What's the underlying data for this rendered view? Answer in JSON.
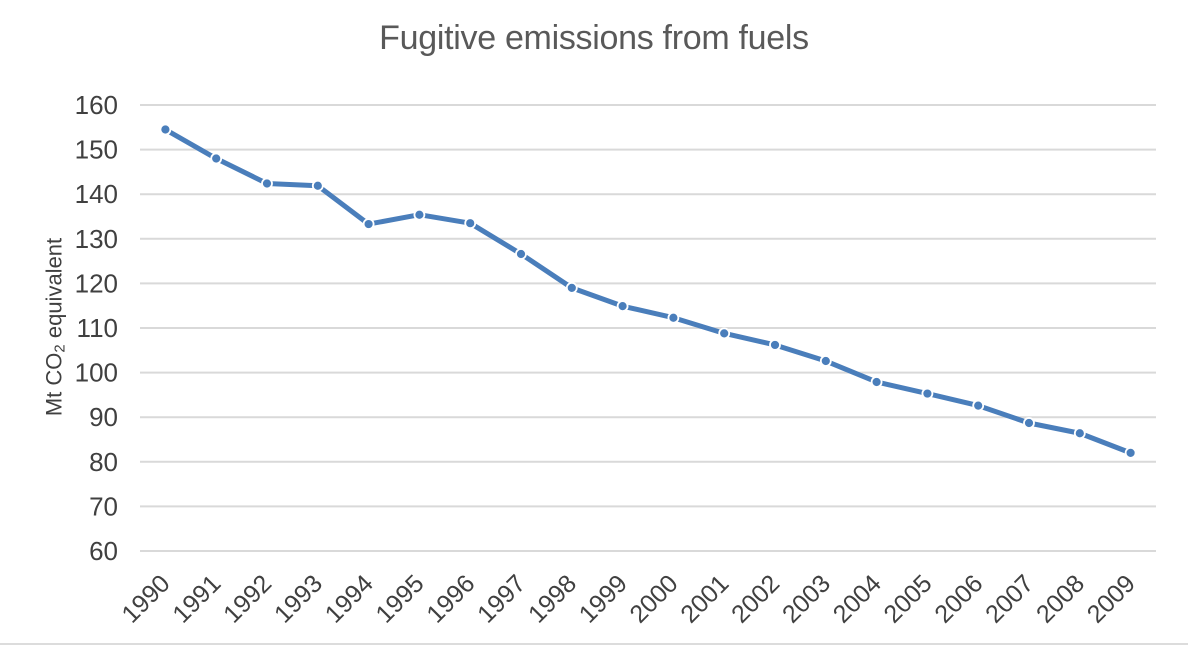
{
  "chart_data": {
    "type": "line",
    "title": "Fugitive emissions from fuels",
    "ylabel": "Mt CO₂ equivalent",
    "ylabel_parts": {
      "pre": "Mt CO",
      "sub": "2",
      "post": " equivalent"
    },
    "xlabel": "",
    "categories": [
      "1990",
      "1991",
      "1992",
      "1993",
      "1994",
      "1995",
      "1996",
      "1997",
      "1998",
      "1999",
      "2000",
      "2001",
      "2002",
      "2003",
      "2004",
      "2005",
      "2006",
      "2007",
      "2008",
      "2009"
    ],
    "series": [
      {
        "name": "Fugitive emissions from fuels",
        "values": [
          154.5,
          148.0,
          142.4,
          141.9,
          133.3,
          135.4,
          133.5,
          126.6,
          119.0,
          114.9,
          112.3,
          108.8,
          106.2,
          102.6,
          97.9,
          95.3,
          92.6,
          88.7,
          86.4,
          82.0
        ]
      }
    ],
    "ylim": [
      60,
      160
    ],
    "yticks": [
      160,
      150,
      140,
      130,
      120,
      110,
      100,
      90,
      80,
      70,
      60
    ],
    "grid": "horizontal",
    "legend": "none",
    "styles": {
      "line_color": "#4A7EBB",
      "marker_fill": "#4A7EBB",
      "marker_stroke": "#FFFFFF",
      "gridline_color": "#D9D9D9",
      "title_color": "#595959",
      "axis_text_color": "#404040",
      "divider_color": "#DCDCDC",
      "background": "#FFFFFF"
    }
  }
}
